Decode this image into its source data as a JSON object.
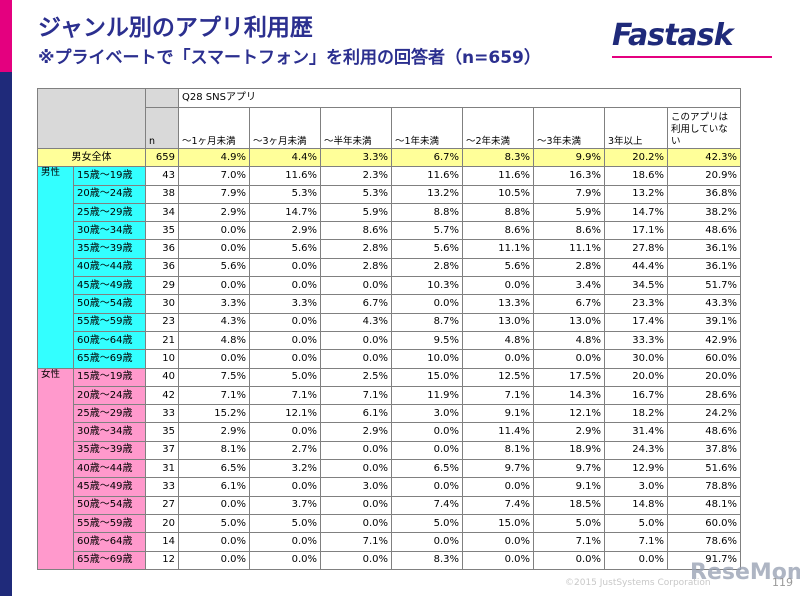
{
  "header": {
    "title": "ジャンル別のアプリ利用歴",
    "subtitle": "※プライベートで「スマートフォン」を利用の回答者（n=659）",
    "logo": "Fastask"
  },
  "table": {
    "question": "Q28 SNSアプリ",
    "n_header": "n",
    "columns": [
      "～1ヶ月未満",
      "～3ヶ月未満",
      "～半年未満",
      "～1年未満",
      "～2年未満",
      "～3年未満",
      "3年以上",
      "このアプリは利用していない"
    ],
    "total": {
      "label": "男女全体",
      "n": "659",
      "cells": [
        "4.9%",
        "4.4%",
        "3.3%",
        "6.7%",
        "8.3%",
        "9.9%",
        "20.2%",
        "42.3%"
      ]
    },
    "groups": [
      {
        "label": "男性",
        "rows": [
          {
            "age": "15歳～19歳",
            "n": "43",
            "cells": [
              "7.0%",
              "11.6%",
              "2.3%",
              "11.6%",
              "11.6%",
              "16.3%",
              "18.6%",
              "20.9%"
            ]
          },
          {
            "age": "20歳～24歳",
            "n": "38",
            "cells": [
              "7.9%",
              "5.3%",
              "5.3%",
              "13.2%",
              "10.5%",
              "7.9%",
              "13.2%",
              "36.8%"
            ]
          },
          {
            "age": "25歳～29歳",
            "n": "34",
            "cells": [
              "2.9%",
              "14.7%",
              "5.9%",
              "8.8%",
              "8.8%",
              "5.9%",
              "14.7%",
              "38.2%"
            ]
          },
          {
            "age": "30歳～34歳",
            "n": "35",
            "cells": [
              "0.0%",
              "2.9%",
              "8.6%",
              "5.7%",
              "8.6%",
              "8.6%",
              "17.1%",
              "48.6%"
            ]
          },
          {
            "age": "35歳～39歳",
            "n": "36",
            "cells": [
              "0.0%",
              "5.6%",
              "2.8%",
              "5.6%",
              "11.1%",
              "11.1%",
              "27.8%",
              "36.1%"
            ]
          },
          {
            "age": "40歳～44歳",
            "n": "36",
            "cells": [
              "5.6%",
              "0.0%",
              "2.8%",
              "2.8%",
              "5.6%",
              "2.8%",
              "44.4%",
              "36.1%"
            ]
          },
          {
            "age": "45歳～49歳",
            "n": "29",
            "cells": [
              "0.0%",
              "0.0%",
              "0.0%",
              "10.3%",
              "0.0%",
              "3.4%",
              "34.5%",
              "51.7%"
            ]
          },
          {
            "age": "50歳～54歳",
            "n": "30",
            "cells": [
              "3.3%",
              "3.3%",
              "6.7%",
              "0.0%",
              "13.3%",
              "6.7%",
              "23.3%",
              "43.3%"
            ]
          },
          {
            "age": "55歳～59歳",
            "n": "23",
            "cells": [
              "4.3%",
              "0.0%",
              "4.3%",
              "8.7%",
              "13.0%",
              "13.0%",
              "17.4%",
              "39.1%"
            ]
          },
          {
            "age": "60歳～64歳",
            "n": "21",
            "cells": [
              "4.8%",
              "0.0%",
              "0.0%",
              "9.5%",
              "4.8%",
              "4.8%",
              "33.3%",
              "42.9%"
            ]
          },
          {
            "age": "65歳～69歳",
            "n": "10",
            "cells": [
              "0.0%",
              "0.0%",
              "0.0%",
              "10.0%",
              "0.0%",
              "0.0%",
              "30.0%",
              "60.0%"
            ]
          }
        ]
      },
      {
        "label": "女性",
        "rows": [
          {
            "age": "15歳～19歳",
            "n": "40",
            "cells": [
              "7.5%",
              "5.0%",
              "2.5%",
              "15.0%",
              "12.5%",
              "17.5%",
              "20.0%",
              "20.0%"
            ]
          },
          {
            "age": "20歳～24歳",
            "n": "42",
            "cells": [
              "7.1%",
              "7.1%",
              "7.1%",
              "11.9%",
              "7.1%",
              "14.3%",
              "16.7%",
              "28.6%"
            ]
          },
          {
            "age": "25歳～29歳",
            "n": "33",
            "cells": [
              "15.2%",
              "12.1%",
              "6.1%",
              "3.0%",
              "9.1%",
              "12.1%",
              "18.2%",
              "24.2%"
            ]
          },
          {
            "age": "30歳～34歳",
            "n": "35",
            "cells": [
              "2.9%",
              "0.0%",
              "2.9%",
              "0.0%",
              "11.4%",
              "2.9%",
              "31.4%",
              "48.6%"
            ]
          },
          {
            "age": "35歳～39歳",
            "n": "37",
            "cells": [
              "8.1%",
              "2.7%",
              "0.0%",
              "0.0%",
              "8.1%",
              "18.9%",
              "24.3%",
              "37.8%"
            ]
          },
          {
            "age": "40歳～44歳",
            "n": "31",
            "cells": [
              "6.5%",
              "3.2%",
              "0.0%",
              "6.5%",
              "9.7%",
              "9.7%",
              "12.9%",
              "51.6%"
            ]
          },
          {
            "age": "45歳～49歳",
            "n": "33",
            "cells": [
              "6.1%",
              "0.0%",
              "3.0%",
              "0.0%",
              "0.0%",
              "9.1%",
              "3.0%",
              "78.8%"
            ]
          },
          {
            "age": "50歳～54歳",
            "n": "27",
            "cells": [
              "0.0%",
              "3.7%",
              "0.0%",
              "7.4%",
              "7.4%",
              "18.5%",
              "14.8%",
              "48.1%"
            ]
          },
          {
            "age": "55歳～59歳",
            "n": "20",
            "cells": [
              "5.0%",
              "5.0%",
              "0.0%",
              "5.0%",
              "15.0%",
              "5.0%",
              "5.0%",
              "60.0%"
            ]
          },
          {
            "age": "60歳～64歳",
            "n": "14",
            "cells": [
              "0.0%",
              "0.0%",
              "7.1%",
              "0.0%",
              "0.0%",
              "7.1%",
              "7.1%",
              "78.6%"
            ]
          },
          {
            "age": "65歳～69歳",
            "n": "12",
            "cells": [
              "0.0%",
              "0.0%",
              "0.0%",
              "8.3%",
              "0.0%",
              "0.0%",
              "0.0%",
              "91.7%"
            ]
          }
        ]
      }
    ]
  },
  "footer": {
    "copyright": "©2015 JustSystems Corporation",
    "page": "119",
    "watermark": "ReseMom"
  }
}
